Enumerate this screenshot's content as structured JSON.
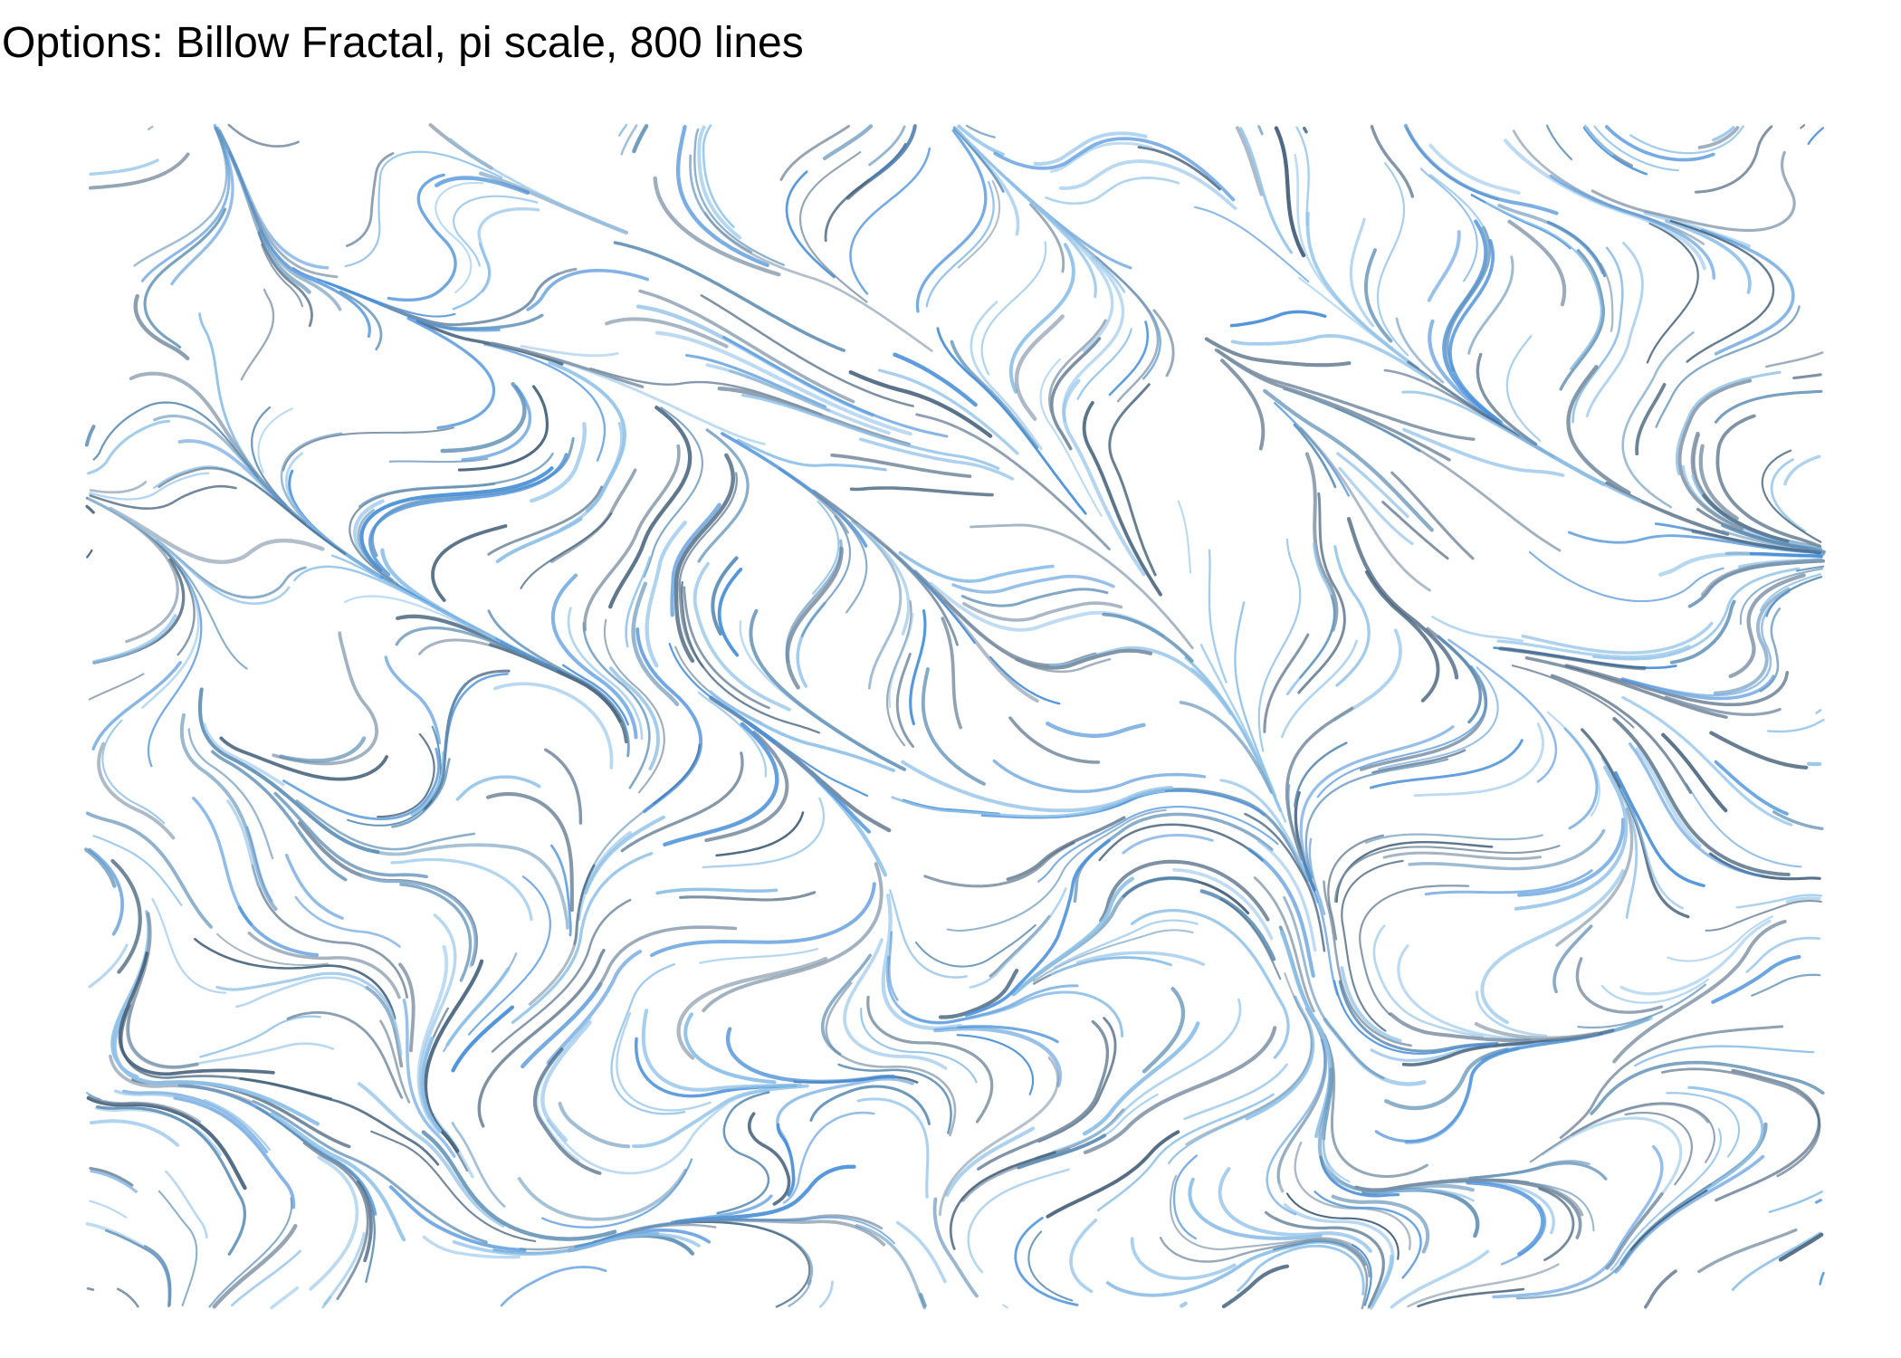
{
  "header": {
    "title": "Options: Billow Fractal, pi scale, 800 lines"
  },
  "artwork": {
    "kind": "flow-field line art",
    "noise": "Billow Fractal",
    "scale": "pi",
    "line_count": 800,
    "colors": {
      "light": "#8fc1e8",
      "mid": "#5f8fb5",
      "dark": "#44607a",
      "accent": "#4a90d9",
      "slate": "#7a8fa3"
    }
  }
}
